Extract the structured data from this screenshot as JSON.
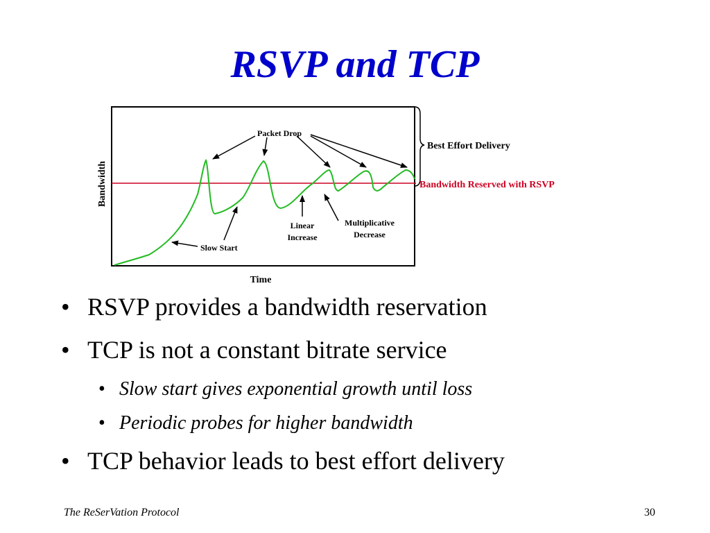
{
  "slide": {
    "title": "RSVP and TCP",
    "footer_left": "The ReSerVation Protocol",
    "page_number": "30"
  },
  "diagram": {
    "y_axis_label": "Bandwidth",
    "x_axis_label": "Time",
    "labels": {
      "packet_drop": "Packet Drop",
      "best_effort": "Best Effort Delivery",
      "reserved": "Bandwidth Reserved with RSVP",
      "slow_start": "Slow Start",
      "linear_increase_1": "Linear",
      "linear_increase_2": "Increase",
      "mult_decrease_1": "Multiplicative",
      "mult_decrease_2": "Decrease"
    },
    "colors": {
      "curve": "#22bb22",
      "reserved_line": "#cc0022",
      "title": "#0000cc"
    }
  },
  "bullets": [
    {
      "level": 1,
      "text": "RSVP provides a bandwidth reservation"
    },
    {
      "level": 1,
      "text": "TCP is not a constant bitrate service"
    },
    {
      "level": 2,
      "text": "Slow start gives exponential growth until loss"
    },
    {
      "level": 2,
      "text": "Periodic probes for higher bandwidth"
    },
    {
      "level": 1,
      "text": "TCP behavior leads to best effort delivery"
    }
  ]
}
